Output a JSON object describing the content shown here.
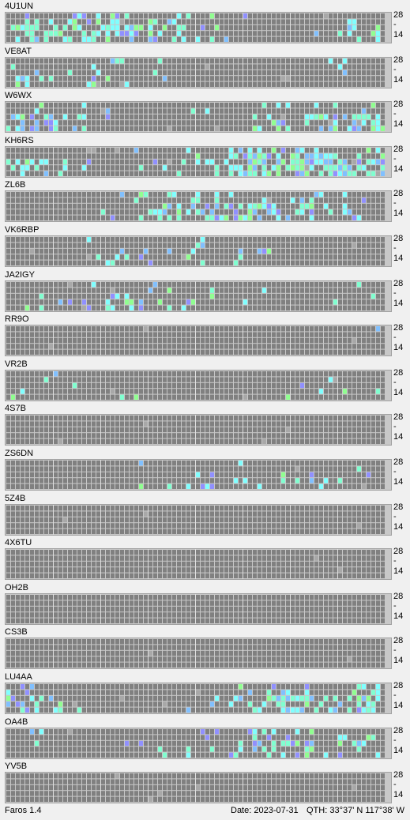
{
  "app": {
    "name": "Faros 1.4"
  },
  "status": {
    "date": "Date: 2023-07-31",
    "qth": "QTH: 33°37' N  117°38' W"
  },
  "bands": {
    "top": "28",
    "mid": "-",
    "bottom": "14"
  },
  "colors": {
    "grid_bg": "#808080",
    "cell_line": "#c8c8c8",
    "weak": "#a8a8a8",
    "cyan": "#80ffff",
    "teal": "#80ffd0",
    "blue": "#80c0ff",
    "violet": "#9090ff",
    "green": "#90ff90"
  },
  "stations": [
    {
      "callsign": "4U1UN"
    },
    {
      "callsign": "VE8AT"
    },
    {
      "callsign": "W6WX"
    },
    {
      "callsign": "KH6RS"
    },
    {
      "callsign": "ZL6B"
    },
    {
      "callsign": "VK6RBP"
    },
    {
      "callsign": "JA2IGY"
    },
    {
      "callsign": "RR9O"
    },
    {
      "callsign": "VR2B"
    },
    {
      "callsign": "4S7B"
    },
    {
      "callsign": "ZS6DN"
    },
    {
      "callsign": "5Z4B"
    },
    {
      "callsign": "4X6TU"
    },
    {
      "callsign": "OH2B"
    },
    {
      "callsign": "CS3B"
    },
    {
      "callsign": "LU4AA"
    },
    {
      "callsign": "OA4B"
    },
    {
      "callsign": "YV5B"
    }
  ]
}
